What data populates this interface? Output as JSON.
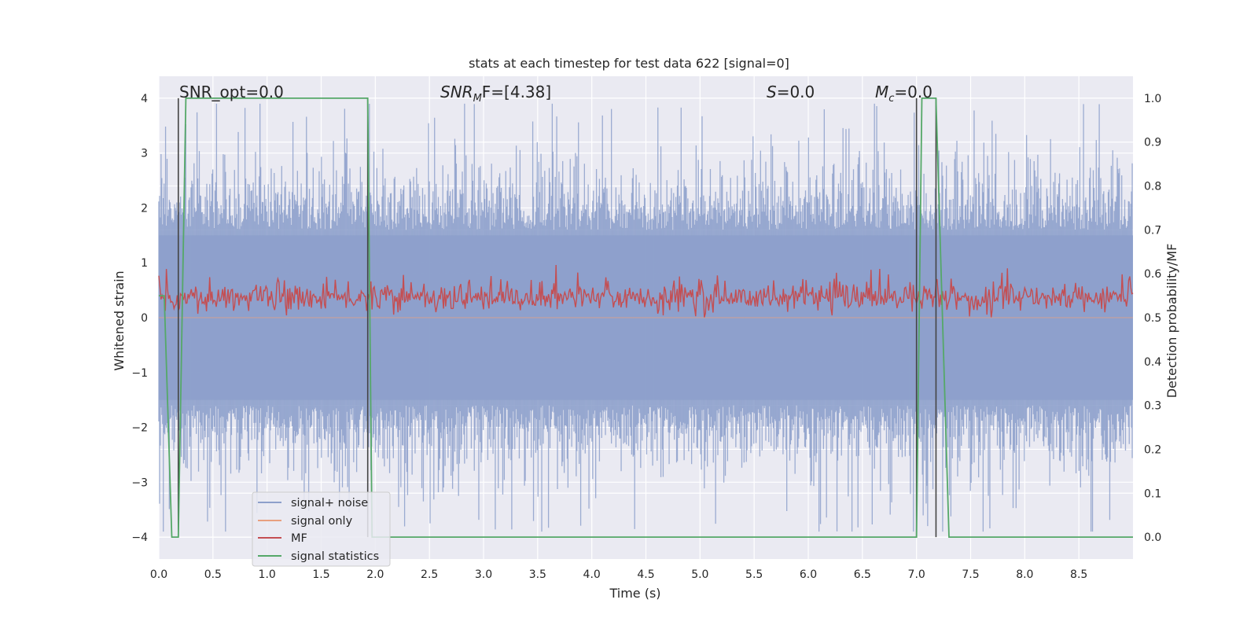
{
  "chart_data": {
    "type": "line",
    "title": "stats at each timestep for test data 622 [signal=0]",
    "xlabel": "Time (s)",
    "ylabel_left": "Whitened strain",
    "ylabel_right": "Detection probability/MF",
    "xlim": [
      0.0,
      9.0
    ],
    "ylim_left": [
      -4.4,
      4.4
    ],
    "ylim_right": [
      -0.05,
      1.05
    ],
    "x_ticks": [
      "0.0",
      "0.5",
      "1.0",
      "1.5",
      "2.0",
      "2.5",
      "3.0",
      "3.5",
      "4.0",
      "4.5",
      "5.0",
      "5.5",
      "6.0",
      "6.5",
      "7.0",
      "7.5",
      "8.0",
      "8.5"
    ],
    "y_ticks_left": [
      "4",
      "3",
      "2",
      "1",
      "0",
      "−1",
      "−2",
      "−3",
      "−4"
    ],
    "y_ticks_right": [
      "1.0",
      "0.9",
      "0.8",
      "0.7",
      "0.6",
      "0.5",
      "0.4",
      "0.3",
      "0.2",
      "0.1",
      "0.0"
    ],
    "grid": true,
    "legend_position": "lower-left",
    "annotations": {
      "snr_opt": "SNR_opt=0.0",
      "snr_mf_prefix": "SNR",
      "snr_mf_sub": "M",
      "snr_mf_suffix": "F=[4.38]",
      "s_prefix": "S",
      "s_suffix": "=0.0",
      "mc_prefix": "M",
      "mc_sub": "c",
      "mc_suffix": "=0.0"
    },
    "series": [
      {
        "name": "signal+ noise",
        "color": "#8da0cb",
        "axis": "left",
        "approx_range": [
          -3.9,
          3.9
        ],
        "typical_band": [
          -1.6,
          1.6
        ]
      },
      {
        "name": "signal only",
        "color": "#e8a07f",
        "axis": "left",
        "values": "flat at 0"
      },
      {
        "name": "MF",
        "color": "#c44e52",
        "axis": "right",
        "approx_range": [
          0.5,
          0.62
        ]
      },
      {
        "name": "signal statistics",
        "color": "#55a868",
        "axis": "right",
        "x": [
          0.0,
          0.05,
          0.12,
          0.18,
          0.25,
          1.93,
          1.97,
          2.0,
          7.0,
          7.05,
          7.18,
          7.3,
          9.0
        ],
        "y": [
          0.55,
          0.55,
          0.0,
          0.0,
          1.0,
          1.0,
          0.0,
          0.0,
          0.0,
          1.0,
          1.0,
          0.0,
          0.0
        ]
      }
    ],
    "vertical_markers_x": [
      0.18,
      1.93,
      7.0,
      7.18
    ]
  }
}
